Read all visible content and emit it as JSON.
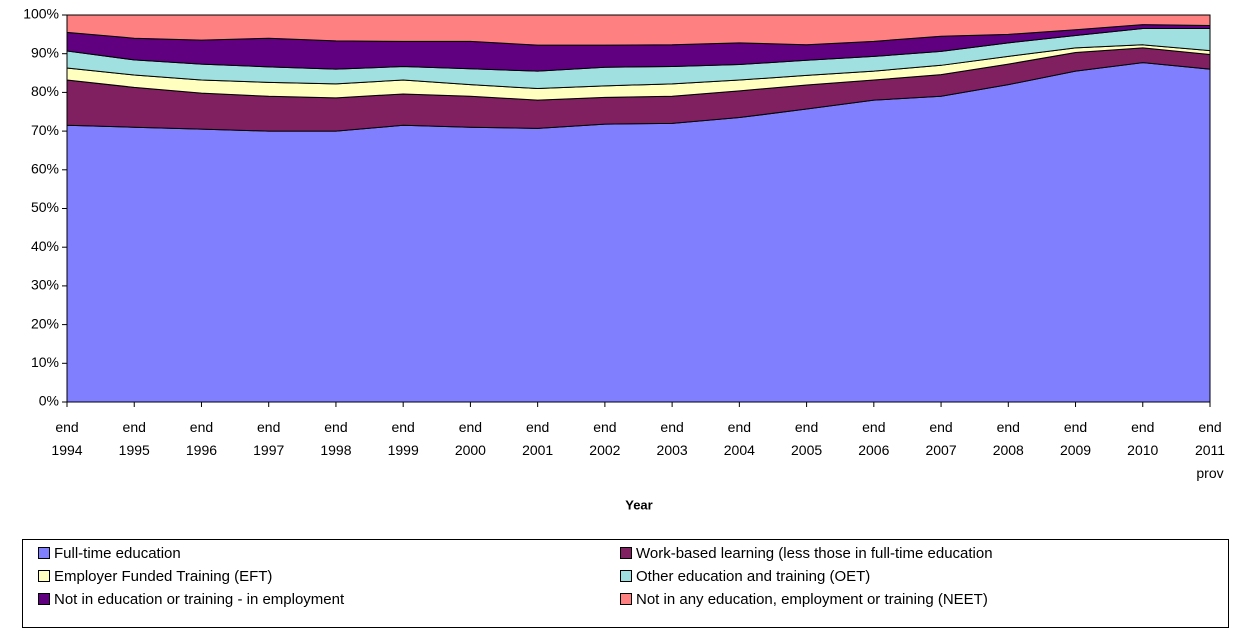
{
  "chart_data": {
    "type": "stacked_area",
    "x_label": "Year",
    "categories": [
      "end 1994",
      "end 1995",
      "end 1996",
      "end 1997",
      "end 1998",
      "end 1999",
      "end 2000",
      "end 2001",
      "end 2002",
      "end 2003",
      "end 2004",
      "end 2005",
      "end 2006",
      "end 2007",
      "end 2008",
      "end 2009",
      "end 2010",
      "end 2011 prov"
    ],
    "series": [
      {
        "name": "Full-time education",
        "color": "#8080ff",
        "values": [
          71.5,
          71,
          70.5,
          70,
          70,
          71.5,
          71,
          70.7,
          71.8,
          72,
          73.5,
          75.7,
          78,
          79,
          82,
          85.5,
          87.7,
          86
        ]
      },
      {
        "name": "Work-based learning (less those in full-time education",
        "color": "#802060",
        "values": [
          11.7,
          10.3,
          9.3,
          9,
          8.6,
          8.1,
          8,
          7.3,
          6.9,
          7,
          6.9,
          6.2,
          5.2,
          5.6,
          5.3,
          4.8,
          3.8,
          3.8
        ]
      },
      {
        "name": "Employer Funded Training (EFT)",
        "color": "#ffffc0",
        "values": [
          3.1,
          3.2,
          3.4,
          3.6,
          3.6,
          3.6,
          3,
          3,
          3,
          3.2,
          2.8,
          2.5,
          2.3,
          2.4,
          2,
          1.2,
          0.8,
          1
        ]
      },
      {
        "name": "Other education and training (OET)",
        "color": "#a0e0e0",
        "values": [
          4.4,
          3.9,
          4.1,
          4,
          3.8,
          3.5,
          4.1,
          4.5,
          4.8,
          4.5,
          4,
          3.9,
          3.8,
          3.6,
          3.5,
          3.2,
          4.2,
          5.7
        ]
      },
      {
        "name": "Not in education or training - in employment",
        "color": "#600080",
        "values": [
          4.8,
          5.6,
          6.2,
          7.4,
          7.3,
          6.5,
          7.1,
          6.7,
          5.7,
          5.6,
          5.6,
          4,
          3.9,
          3.9,
          2.2,
          1.5,
          1,
          0.8
        ]
      },
      {
        "name": "Not in any education, employment or training (NEET)",
        "color": "#ff8080",
        "values": [
          4.5,
          6,
          6.5,
          6,
          6.7,
          6.8,
          6.8,
          7.8,
          7.8,
          7.7,
          7.2,
          7.7,
          6.8,
          5.5,
          5,
          3.8,
          2.5,
          2.7
        ]
      }
    ],
    "ylim": [
      0,
      100
    ],
    "yticks": [
      {
        "value": 0,
        "label": "0%"
      },
      {
        "value": 10,
        "label": "10%"
      },
      {
        "value": 20,
        "label": "20%"
      },
      {
        "value": 30,
        "label": "30%"
      },
      {
        "value": 40,
        "label": "40%"
      },
      {
        "value": 50,
        "label": "50%"
      },
      {
        "value": 60,
        "label": "60%"
      },
      {
        "value": 70,
        "label": "70%"
      },
      {
        "value": 80,
        "label": "80%"
      },
      {
        "value": 90,
        "label": "90%"
      },
      {
        "value": 100,
        "label": "100%"
      }
    ],
    "legend": "bottom"
  }
}
